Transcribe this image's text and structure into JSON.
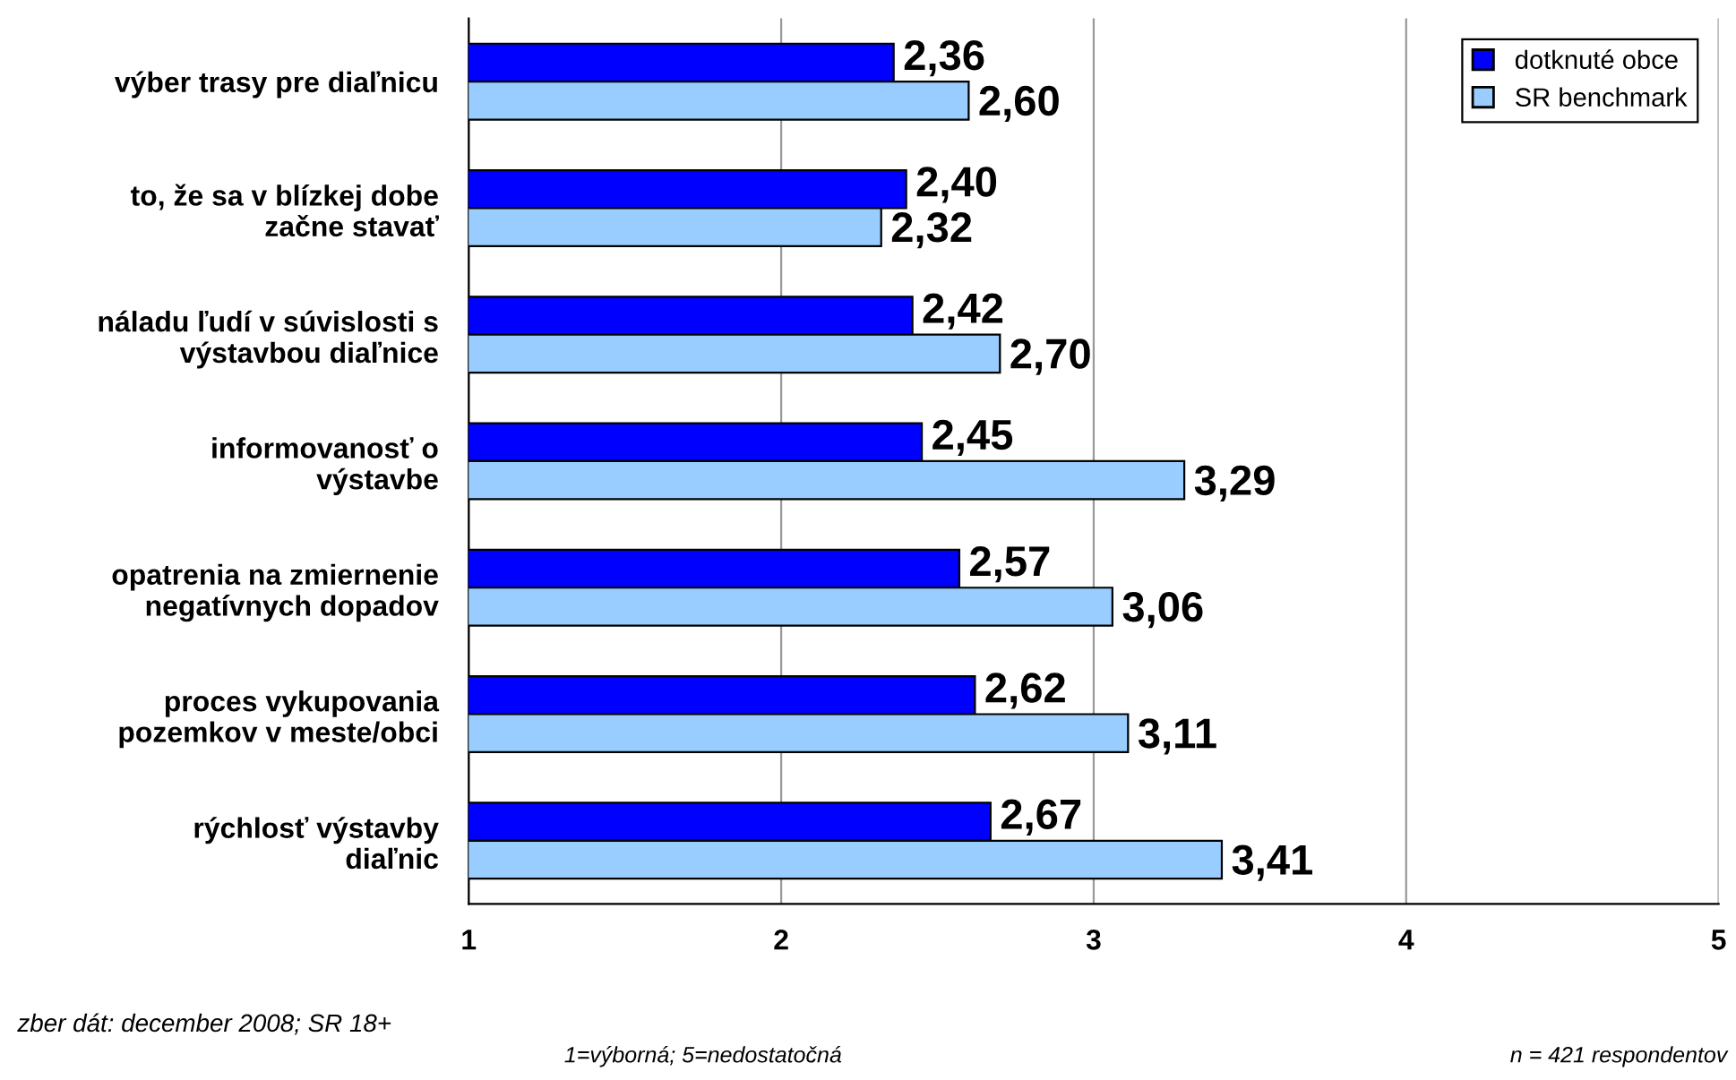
{
  "chart_data": {
    "type": "bar",
    "orientation": "horizontal",
    "categories": [
      "výber trasy pre diaľnicu",
      "to, že sa v blízkej dobe\nzačne stavať",
      "náladu ľudí v súvislosti s\nvýstavbou diaľnice",
      "informovanosť o\nvýstavbe",
      "opatrenia na zmiernenie\nnegatívnych dopadov",
      "proces vykupovania\npozemkov v meste/obci",
      "rýchlosť výstavby\ndiaľnic"
    ],
    "series": [
      {
        "name": "dotknuté obce",
        "color": "#0000ff",
        "values": [
          2.36,
          2.4,
          2.42,
          2.45,
          2.57,
          2.62,
          2.67
        ],
        "value_labels": [
          "2,36",
          "2,40",
          "2,42",
          "2,45",
          "2,57",
          "2,62",
          "2,67"
        ]
      },
      {
        "name": "SR benchmark",
        "color": "#99ccff",
        "values": [
          2.6,
          2.32,
          2.7,
          3.29,
          3.06,
          3.11,
          3.41
        ],
        "value_labels": [
          "2,60",
          "2,32",
          "2,70",
          "3,29",
          "3,06",
          "3,11",
          "3,41"
        ]
      }
    ],
    "xlim": [
      1,
      5
    ],
    "xticks": [
      1,
      2,
      3,
      4,
      5
    ],
    "grid": "x",
    "legend": "top right",
    "annotations": [
      "zber dát: december 2008; SR 18+",
      "1=výborná; 5=nedostatočná",
      "n = 421 respondentov"
    ]
  }
}
